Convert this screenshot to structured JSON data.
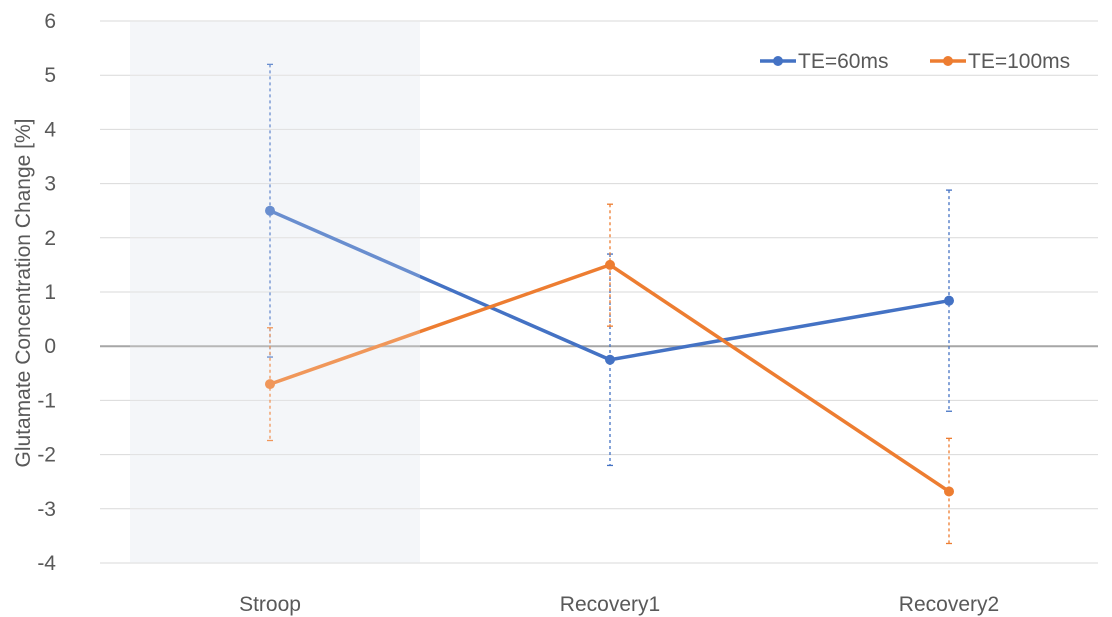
{
  "chart_data": {
    "type": "line",
    "title": "",
    "xlabel": "",
    "ylabel": "Glutamate Concentration Change [%]",
    "categories": [
      "Stroop",
      "Recovery1",
      "Recovery2"
    ],
    "ylim": [
      -4,
      6
    ],
    "yticks": [
      -4,
      -3,
      -2,
      -1,
      0,
      1,
      2,
      3,
      4,
      5,
      6
    ],
    "grid": true,
    "legend_position": "top-right",
    "highlight_region": "Stroop",
    "highlight_color": "#f2f4f8",
    "series": [
      {
        "name": "TE=60ms",
        "color": "#4472c4",
        "values": [
          2.5,
          -0.25,
          0.84
        ],
        "error_low": [
          -0.2,
          -2.2,
          -1.2
        ],
        "error_high": [
          5.2,
          1.7,
          2.88
        ]
      },
      {
        "name": "TE=100ms",
        "color": "#ed7d31",
        "values": [
          -0.7,
          1.5,
          -2.68
        ],
        "error_low": [
          -1.74,
          0.37,
          -3.64
        ],
        "error_high": [
          0.34,
          2.62,
          -1.7
        ]
      }
    ]
  }
}
